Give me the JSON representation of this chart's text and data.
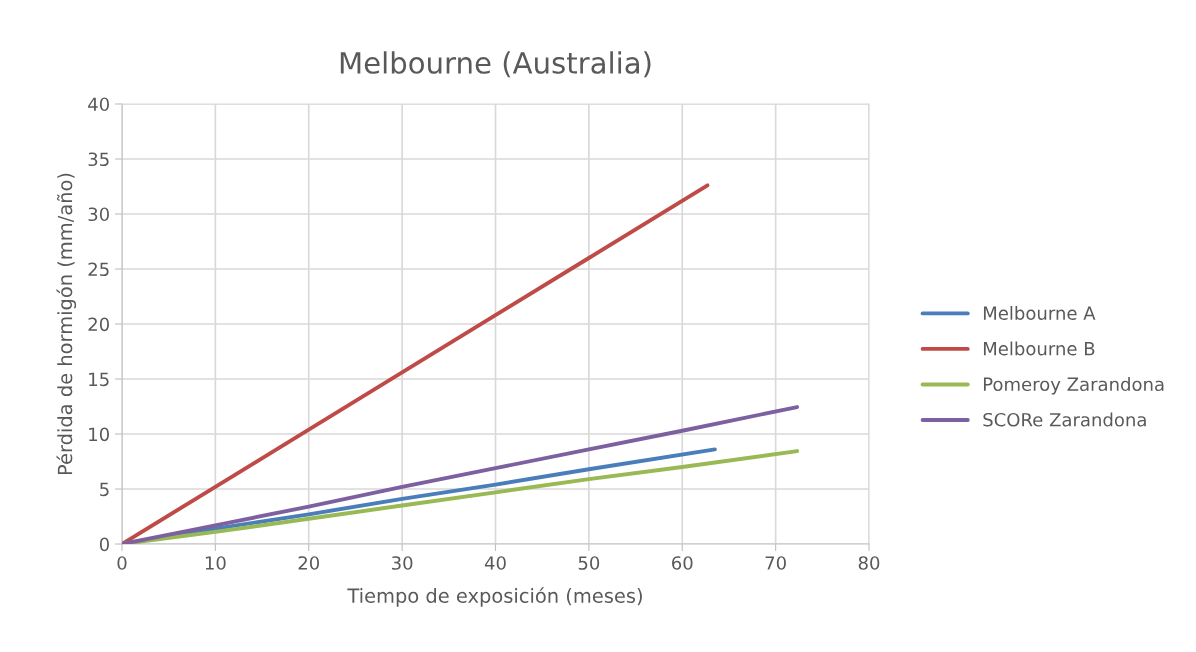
{
  "chart_data": {
    "type": "line",
    "title": "Melbourne (Australia)",
    "xlabel": "Tiempo de exposición (meses)",
    "ylabel": "Pérdida de hormigón (mm/año)",
    "series": [
      {
        "name": "Melbourne A",
        "color": "#4a7ebb",
        "x": [
          0,
          10,
          20,
          30,
          40,
          50,
          63.5
        ],
        "values": [
          0,
          1.4,
          2.7,
          4.1,
          5.4,
          6.8,
          8.6
        ]
      },
      {
        "name": "Melbourne B",
        "color": "#be4b48",
        "x": [
          0,
          10,
          20,
          30,
          40,
          50,
          62.7
        ],
        "values": [
          0,
          5.2,
          10.4,
          15.6,
          20.8,
          26,
          32.6
        ]
      },
      {
        "name": "Pomeroy Zarandona",
        "color": "#98b954",
        "x": [
          0,
          10,
          20,
          30,
          40,
          50,
          60,
          72.3
        ],
        "values": [
          0,
          1.1,
          2.3,
          3.5,
          4.7,
          5.9,
          7.0,
          8.45
        ]
      },
      {
        "name": "SCORe Zarandona",
        "color": "#7d60a0",
        "x": [
          0,
          10,
          20,
          30,
          40,
          50,
          60,
          72.3
        ],
        "values": [
          0,
          1.7,
          3.4,
          5.2,
          6.9,
          8.6,
          10.3,
          12.45
        ]
      }
    ],
    "xlim": [
      0,
      80
    ],
    "xticks": [
      0,
      10,
      20,
      30,
      40,
      50,
      60,
      70,
      80
    ],
    "ylim": [
      0,
      40
    ],
    "yticks": [
      0,
      5,
      10,
      15,
      20,
      25,
      30,
      35,
      40
    ],
    "grid": true,
    "legend": "right",
    "marker": "none",
    "line_style": "solid"
  }
}
